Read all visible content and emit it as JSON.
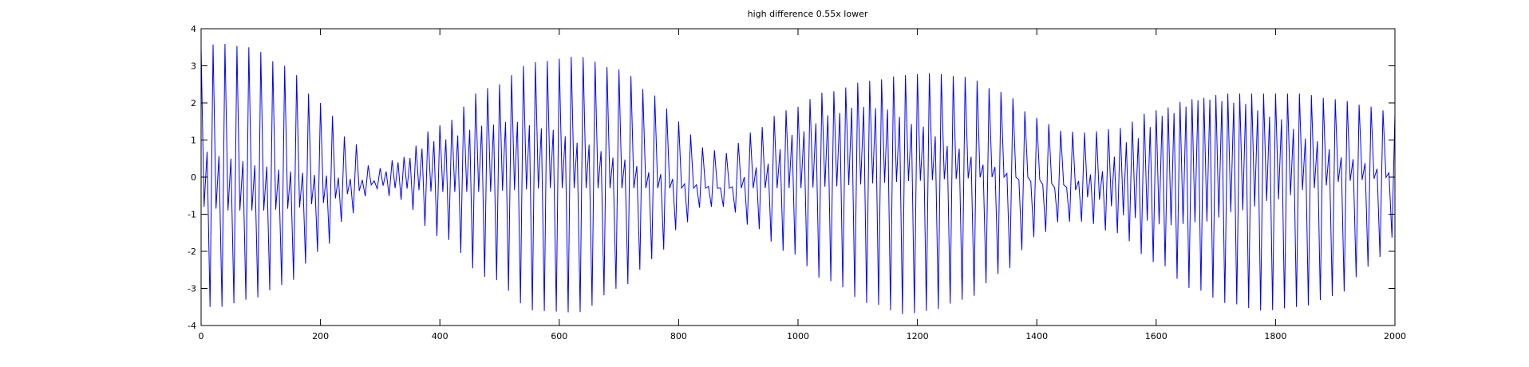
{
  "chart_data": {
    "type": "line",
    "title": "high difference 0.55x lower",
    "xlabel": "",
    "ylabel": "",
    "xlim": [
      0,
      2000
    ],
    "ylim": [
      -4,
      4
    ],
    "x_ticks": [
      0,
      200,
      400,
      600,
      800,
      1000,
      1200,
      1400,
      1600,
      1800,
      2000
    ],
    "y_ticks": [
      4,
      3,
      2,
      1,
      0,
      -1,
      -2,
      -3,
      -4
    ],
    "grid": false,
    "legend": "none",
    "line_color": "#0000ff",
    "series": [
      {
        "style": "dense oscillation with slowly varying envelope",
        "cycle_period_x": 10,
        "upper_envelope": {
          "x": [
            0,
            30,
            80,
            140,
            200,
            250,
            290,
            330,
            400,
            480,
            560,
            630,
            700,
            760,
            800,
            840,
            880,
            920,
            980,
            1050,
            1120,
            1180,
            1220,
            1280,
            1340,
            1400,
            1440,
            1480,
            1530,
            1600,
            1660,
            1720,
            1780,
            1840,
            1900,
            1960,
            2000
          ],
          "y": [
            3.5,
            3.6,
            3.5,
            3.0,
            2.0,
            1.0,
            0.2,
            0.5,
            1.4,
            2.4,
            3.1,
            3.25,
            2.9,
            2.2,
            1.5,
            0.8,
            0.65,
            1.2,
            1.8,
            2.3,
            2.6,
            2.75,
            2.8,
            2.7,
            2.3,
            1.6,
            1.25,
            1.2,
            1.3,
            1.8,
            2.1,
            2.25,
            2.25,
            2.25,
            2.1,
            1.9,
            1.7
          ]
        },
        "lower_envelope": {
          "x": [
            0,
            30,
            80,
            140,
            200,
            250,
            290,
            330,
            400,
            480,
            560,
            630,
            700,
            760,
            800,
            840,
            880,
            920,
            980,
            1050,
            1120,
            1180,
            1220,
            1280,
            1340,
            1400,
            1440,
            1480,
            1530,
            1600,
            1660,
            1720,
            1780,
            1840,
            1900,
            1960,
            2000
          ],
          "y": [
            -3.5,
            -3.5,
            -3.3,
            -2.9,
            -2.0,
            -1.0,
            -0.3,
            -0.6,
            -1.6,
            -2.7,
            -3.6,
            -3.65,
            -3.0,
            -2.2,
            -1.4,
            -0.8,
            -0.8,
            -1.3,
            -2.0,
            -2.8,
            -3.4,
            -3.7,
            -3.6,
            -3.3,
            -2.6,
            -1.6,
            -1.2,
            -1.2,
            -1.5,
            -2.3,
            -3.0,
            -3.4,
            -3.6,
            -3.5,
            -3.2,
            -2.4,
            -1.6
          ]
        },
        "inner_upper": {
          "x": [
            0,
            50,
            100,
            150,
            200,
            250,
            290,
            330,
            400,
            480,
            520,
            580,
            640,
            700,
            760,
            820,
            880,
            940,
            1000,
            1060,
            1100,
            1140,
            1200,
            1260,
            1320,
            1380,
            1440,
            1500,
            1560,
            1620,
            1680,
            1740,
            1800,
            1860,
            1920,
            2000
          ],
          "y": [
            0.7,
            0.5,
            0.3,
            0.15,
            0.05,
            -0.05,
            -0.1,
            0.4,
            1.0,
            1.4,
            1.5,
            1.3,
            0.9,
            0.5,
            0.1,
            -0.2,
            -0.3,
            0.3,
            1.2,
            1.7,
            1.9,
            1.85,
            1.4,
            0.8,
            0.3,
            -0.1,
            -0.3,
            0.1,
            1.0,
            1.7,
            2.1,
            2.0,
            1.6,
            1.0,
            0.5,
            0.1
          ]
        },
        "inner_lower": {
          "x": [
            0,
            50,
            100,
            150,
            200,
            250,
            290,
            330,
            400,
            480,
            520,
            580,
            640,
            700,
            760,
            820,
            880,
            940,
            1000,
            1060,
            1100,
            1140,
            1200,
            1260,
            1320,
            1380,
            1440,
            1500,
            1560,
            1620,
            1680,
            1740,
            1800,
            1860,
            1920,
            2000
          ],
          "y": [
            -0.8,
            -0.9,
            -0.9,
            -0.85,
            -0.7,
            -0.45,
            -0.2,
            -0.3,
            -0.4,
            -0.4,
            -0.35,
            -0.3,
            -0.3,
            -0.3,
            -0.3,
            -0.3,
            -0.3,
            -0.3,
            -0.3,
            -0.25,
            -0.2,
            -0.15,
            -0.1,
            -0.05,
            0.0,
            0.0,
            -0.2,
            -0.6,
            -1.1,
            -1.3,
            -1.2,
            -0.9,
            -0.6,
            -0.3,
            -0.1,
            0.0
          ]
        }
      }
    ]
  }
}
